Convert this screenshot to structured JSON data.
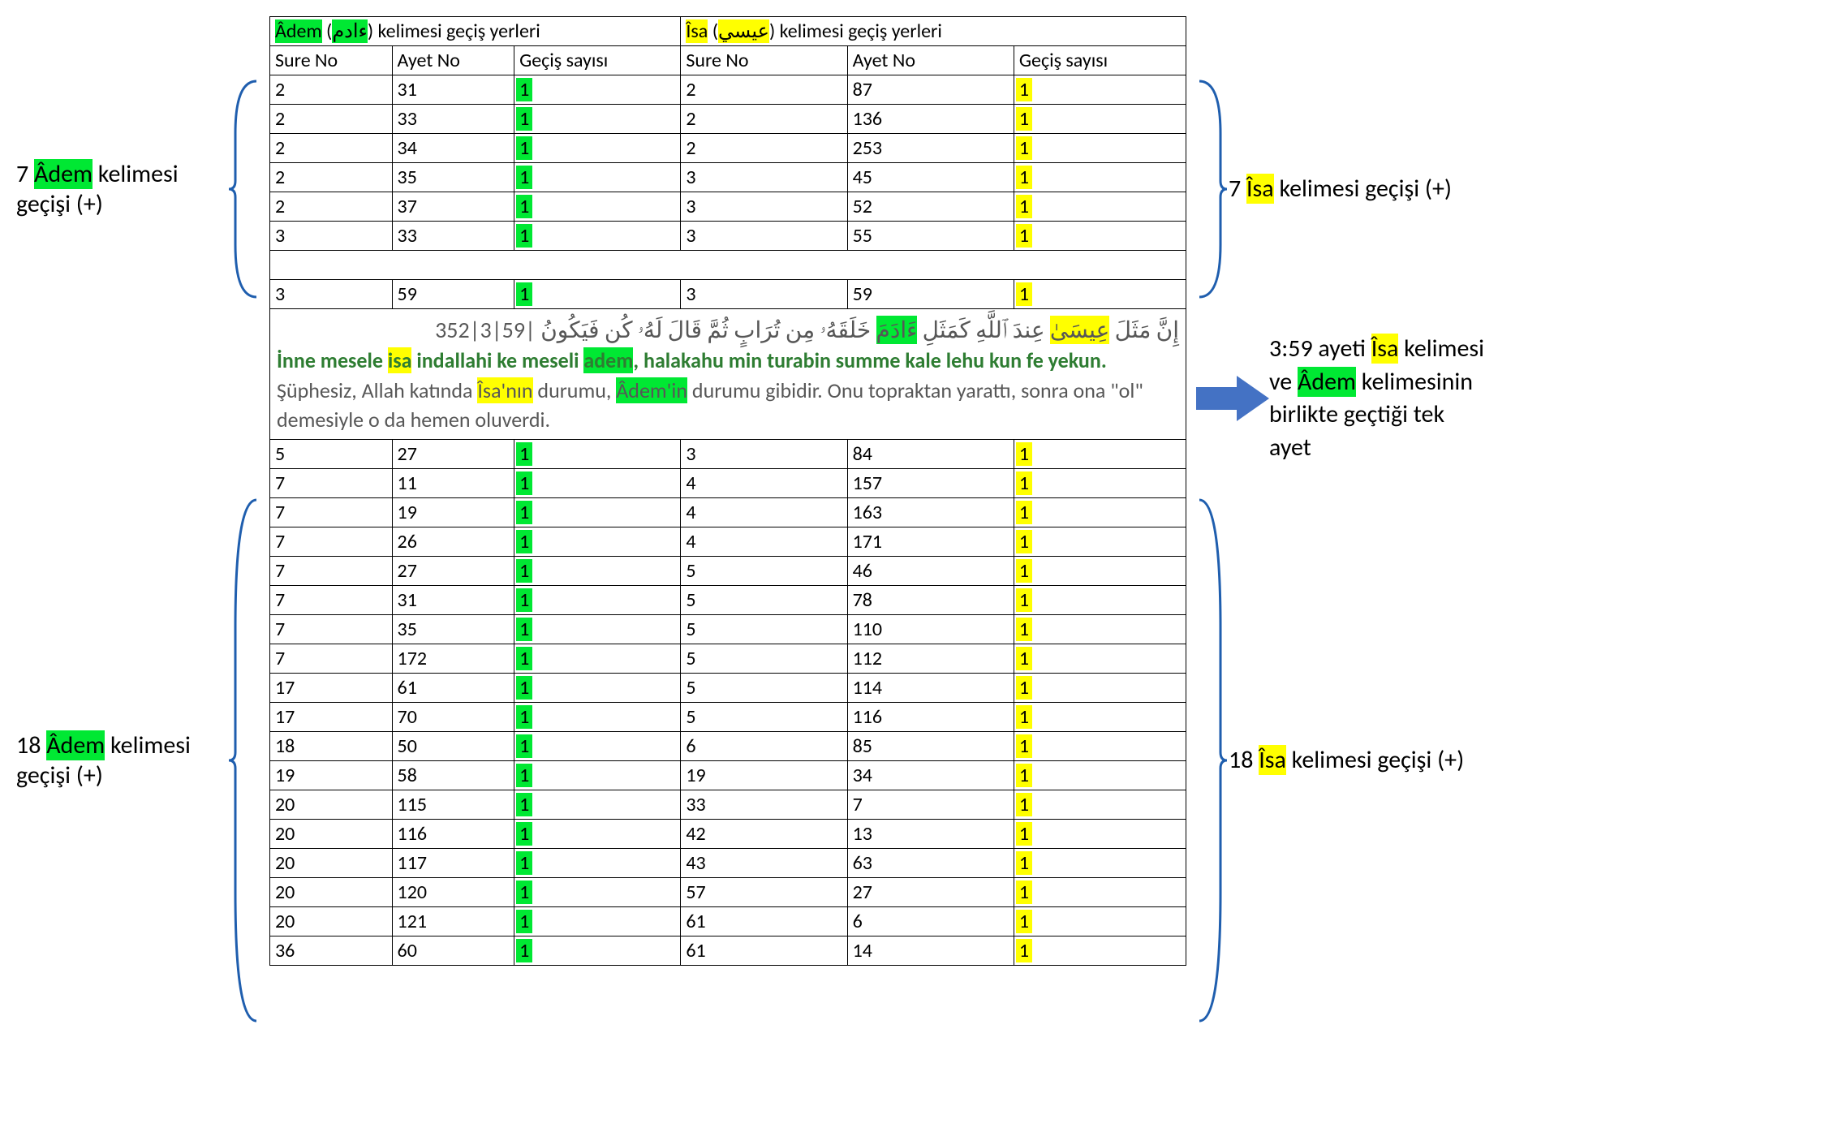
{
  "colors": {
    "green": "#00e833",
    "yellow": "#ffff00",
    "brace": "#1f5eae",
    "arrow": "#4472c4",
    "textGreen": "#2e7d32",
    "textGray": "#575757",
    "border": "#000000"
  },
  "header": {
    "adem": {
      "name": "Âdem",
      "arabic": "ءادم",
      "suffix": ") kelimesi geçiş yerleri"
    },
    "isa": {
      "name": "Îsa",
      "arabic": "عيسي",
      "suffix": ") kelimesi geçiş yerleri"
    },
    "cols": {
      "sure": "Sure No",
      "ayet": "Ayet No",
      "count": "Geçiş sayısı"
    }
  },
  "top_rows": [
    {
      "a": [
        "2",
        "31",
        "1"
      ],
      "i": [
        "2",
        "87",
        "1"
      ]
    },
    {
      "a": [
        "2",
        "33",
        "1"
      ],
      "i": [
        "2",
        "136",
        "1"
      ]
    },
    {
      "a": [
        "2",
        "34",
        "1"
      ],
      "i": [
        "2",
        "253",
        "1"
      ]
    },
    {
      "a": [
        "2",
        "35",
        "1"
      ],
      "i": [
        "3",
        "45",
        "1"
      ]
    },
    {
      "a": [
        "2",
        "37",
        "1"
      ],
      "i": [
        "3",
        "52",
        "1"
      ]
    },
    {
      "a": [
        "3",
        "33",
        "1"
      ],
      "i": [
        "3",
        "55",
        "1"
      ]
    }
  ],
  "mid_row": {
    "a": [
      "3",
      "59",
      "1"
    ],
    "i": [
      "3",
      "59",
      "1"
    ]
  },
  "verse": {
    "ref": "352|3|59|",
    "ar_before": "إِنَّ مَثَلَ ",
    "ar_isa": "عِيسَىٰ",
    "ar_mid": " عِندَ ٱللَّهِ كَمَثَلِ ",
    "ar_adem": "ءَادَمَ",
    "ar_after": " خَلَقَهُۥ مِن تُرَابٍ ثُمَّ قَالَ لَهُۥ كُن فَيَكُونُ",
    "tr_a": "İnne mesele ",
    "tr_isa": "isa",
    "tr_b": " indallahi ke meseli ",
    "tr_adem": "adem",
    "tr_c": ", halakahu min turabin summe kale lehu kun fe yekun.",
    "tk_a": "Şüphesiz, Allah katında ",
    "tk_isa": "Îsa'nın",
    "tk_b": " durumu, ",
    "tk_adem": "Âdem'in",
    "tk_c": " durumu gibidir. Onu topraktan yarattı, sonra ona \"ol\" demesiyle o da hemen oluverdi."
  },
  "bottom_rows": [
    {
      "a": [
        "5",
        "27",
        "1"
      ],
      "i": [
        "3",
        "84",
        "1"
      ]
    },
    {
      "a": [
        "7",
        "11",
        "1"
      ],
      "i": [
        "4",
        "157",
        "1"
      ]
    },
    {
      "a": [
        "7",
        "19",
        "1"
      ],
      "i": [
        "4",
        "163",
        "1"
      ]
    },
    {
      "a": [
        "7",
        "26",
        "1"
      ],
      "i": [
        "4",
        "171",
        "1"
      ]
    },
    {
      "a": [
        "7",
        "27",
        "1"
      ],
      "i": [
        "5",
        "46",
        "1"
      ]
    },
    {
      "a": [
        "7",
        "31",
        "1"
      ],
      "i": [
        "5",
        "78",
        "1"
      ]
    },
    {
      "a": [
        "7",
        "35",
        "1"
      ],
      "i": [
        "5",
        "110",
        "1"
      ]
    },
    {
      "a": [
        "7",
        "172",
        "1"
      ],
      "i": [
        "5",
        "112",
        "1"
      ]
    },
    {
      "a": [
        "17",
        "61",
        "1"
      ],
      "i": [
        "5",
        "114",
        "1"
      ]
    },
    {
      "a": [
        "17",
        "70",
        "1"
      ],
      "i": [
        "5",
        "116",
        "1"
      ]
    },
    {
      "a": [
        "18",
        "50",
        "1"
      ],
      "i": [
        "6",
        "85",
        "1"
      ]
    },
    {
      "a": [
        "19",
        "58",
        "1"
      ],
      "i": [
        "19",
        "34",
        "1"
      ]
    },
    {
      "a": [
        "20",
        "115",
        "1"
      ],
      "i": [
        "33",
        "7",
        "1"
      ]
    },
    {
      "a": [
        "20",
        "116",
        "1"
      ],
      "i": [
        "42",
        "13",
        "1"
      ]
    },
    {
      "a": [
        "20",
        "117",
        "1"
      ],
      "i": [
        "43",
        "63",
        "1"
      ]
    },
    {
      "a": [
        "20",
        "120",
        "1"
      ],
      "i": [
        "57",
        "27",
        "1"
      ]
    },
    {
      "a": [
        "20",
        "121",
        "1"
      ],
      "i": [
        "61",
        "6",
        "1"
      ]
    },
    {
      "a": [
        "36",
        "60",
        "1"
      ],
      "i": [
        "61",
        "14",
        "1"
      ]
    }
  ],
  "side": {
    "top_adem_n": "7 ",
    "top_adem_w": "Âdem",
    "top_adem_t": " kelimesi geçişi (+)",
    "top_isa_n": "7 ",
    "top_isa_w": "Îsa",
    "top_isa_t": " kelimesi geçişi (+)",
    "bot_adem_n": "18 ",
    "bot_adem_w": "Âdem",
    "bot_adem_t": " kelimesi geçişi (+)",
    "bot_isa_n": "18 ",
    "bot_isa_w": "Îsa",
    "bot_isa_t": " kelimesi geçişi (+)"
  },
  "note359": {
    "a": "3:59 ayeti ",
    "isa": "Îsa",
    "b": " kelimesi ve ",
    "adem": "Âdem",
    "c": " kelimesinin birlikte geçtiği tek ayet"
  },
  "layout": {
    "top_block_h": 274,
    "mid_brace_h": 38,
    "verse_h": 204,
    "bottom_block_h": 650,
    "brace_w": 40
  }
}
